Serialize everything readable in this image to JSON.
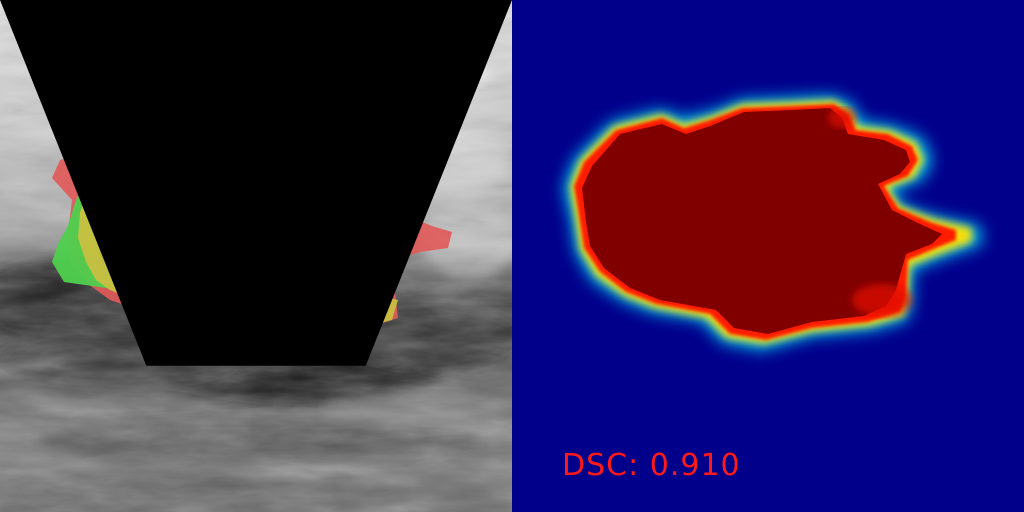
{
  "metric": {
    "label": "DSC:",
    "value": "0.910"
  },
  "colors": {
    "ground_truth_only": "#e05a5a",
    "prediction_only": "#4ed04e",
    "overlap": "#c8c041",
    "heatmap_background": "#00008b",
    "heatmap_core": "#800000",
    "metric_text": "#ff1a1a"
  },
  "panels": [
    {
      "name": "ultrasound-overlay"
    },
    {
      "name": "probability-heatmap"
    }
  ]
}
